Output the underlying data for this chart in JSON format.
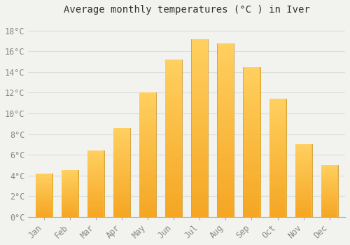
{
  "title": "Average monthly temperatures (°C ) in Iver",
  "months": [
    "Jan",
    "Feb",
    "Mar",
    "Apr",
    "May",
    "Jun",
    "Jul",
    "Aug",
    "Sep",
    "Oct",
    "Nov",
    "Dec"
  ],
  "values": [
    4.2,
    4.5,
    6.4,
    8.6,
    12.0,
    15.2,
    17.2,
    16.8,
    14.5,
    11.4,
    7.0,
    5.0
  ],
  "bar_color_main": "#FFC125",
  "bar_color_base": "#F5A623",
  "bar_color_top": "#FFD060",
  "bar_border_color": "#C8922A",
  "ylim": [
    0,
    19
  ],
  "yticks": [
    0,
    2,
    4,
    6,
    8,
    10,
    12,
    14,
    16,
    18
  ],
  "ytick_labels": [
    "0°C",
    "2°C",
    "4°C",
    "6°C",
    "8°C",
    "10°C",
    "12°C",
    "14°C",
    "16°C",
    "18°C"
  ],
  "background_color": "#F2F2EE",
  "grid_color": "#DDDDDD",
  "title_fontsize": 10,
  "tick_fontsize": 8.5,
  "bar_width": 0.65
}
